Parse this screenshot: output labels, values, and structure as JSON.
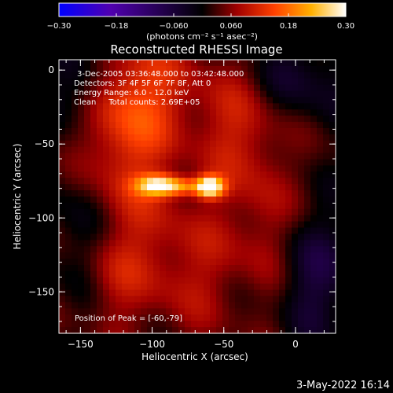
{
  "chart_data": {
    "type": "heatmap",
    "title": "Reconstructed RHESSI Image",
    "xlabel": "Heliocentric X (arcsec)",
    "ylabel": "Heliocentric Y (arcsec)",
    "xlim": [
      -165,
      28
    ],
    "ylim": [
      -178,
      7
    ],
    "x_ticks": [
      -150,
      -100,
      -50,
      0
    ],
    "x_tick_labels": [
      "−150",
      "−100",
      "−50",
      "0"
    ],
    "y_ticks": [
      0,
      -50,
      -100,
      -150
    ],
    "y_tick_labels": [
      "0",
      "−50",
      "−100",
      "−150"
    ],
    "colorbar": {
      "range": [
        -0.3,
        0.3
      ],
      "ticks": [
        -0.3,
        -0.18,
        -0.06,
        0.06,
        0.18,
        0.3
      ],
      "tick_labels": [
        "−0.30",
        "−0.18",
        "−0.060",
        "0.060",
        "0.18",
        "0.30"
      ],
      "unit_label": "(photons cm⁻² s⁻¹ asec⁻²)",
      "colors": [
        "#0000ff",
        "#5000b0",
        "#000000",
        "#a00000",
        "#ff4000",
        "#ffb000",
        "#ffffff"
      ]
    },
    "annotations": [
      "3-Dec-2005 03:36:48.000 to 03:42:48.000",
      "Detectors: 3F 4F 5F 6F 7F 8F, Att 0",
      "Energy Range: 6.0 - 12.0 keV",
      "Clean     Total counts: 2.69E+05",
      "Position of Peak = [-60,-79]"
    ],
    "peak": {
      "x": -60,
      "y": -79
    },
    "sources": [
      {
        "x": -60,
        "y": -79,
        "sx": 7,
        "sy": 5,
        "amp": 0.3
      },
      {
        "x": -95,
        "y": -78,
        "sx": 11,
        "sy": 5,
        "amp": 0.24
      },
      {
        "x": -78,
        "y": -79,
        "sx": 8,
        "sy": 4,
        "amp": 0.1
      },
      {
        "x": -105,
        "y": -15,
        "sx": 30,
        "sy": 30,
        "amp": 0.09
      },
      {
        "x": -120,
        "y": -55,
        "sx": 20,
        "sy": 40,
        "amp": 0.08
      },
      {
        "x": -40,
        "y": -40,
        "sx": 20,
        "sy": 30,
        "amp": 0.07
      },
      {
        "x": -80,
        "y": -130,
        "sx": 30,
        "sy": 35,
        "amp": 0.07
      },
      {
        "x": -20,
        "y": -110,
        "sx": 15,
        "sy": 40,
        "amp": 0.06
      },
      {
        "x": -130,
        "y": -140,
        "sx": 15,
        "sy": 25,
        "amp": 0.05
      },
      {
        "x": 10,
        "y": -140,
        "sx": 20,
        "sy": 30,
        "amp": -0.08
      },
      {
        "x": -150,
        "y": -10,
        "sx": 15,
        "sy": 20,
        "amp": -0.08
      },
      {
        "x": 5,
        "y": -5,
        "sx": 25,
        "sy": 20,
        "amp": -0.06
      },
      {
        "x": -150,
        "y": -110,
        "sx": 15,
        "sy": 30,
        "amp": -0.05
      }
    ]
  },
  "timestamp": "3-May-2022 16:14"
}
